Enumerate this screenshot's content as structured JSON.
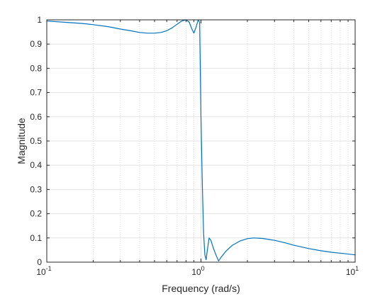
{
  "chart_data": {
    "type": "line",
    "title": "",
    "xlabel": "Frequency (rad/s)",
    "ylabel": "Magnitude",
    "xscale": "log",
    "xlim": [
      0.1,
      10
    ],
    "ylim": [
      0,
      1
    ],
    "grid": true,
    "minor_grid_x": true,
    "line_color": "#0072BD",
    "x_ticks": [
      {
        "base": "10",
        "exp": "-1",
        "value": 0.1
      },
      {
        "base": "10",
        "exp": "0",
        "value": 1
      },
      {
        "base": "10",
        "exp": "1",
        "value": 10
      }
    ],
    "y_ticks": [
      {
        "label": "0",
        "value": 0
      },
      {
        "label": "0.1",
        "value": 0.1
      },
      {
        "label": "0.2",
        "value": 0.2
      },
      {
        "label": "0.3",
        "value": 0.3
      },
      {
        "label": "0.4",
        "value": 0.4
      },
      {
        "label": "0.5",
        "value": 0.5
      },
      {
        "label": "0.6",
        "value": 0.6
      },
      {
        "label": "0.7",
        "value": 0.7
      },
      {
        "label": "0.8",
        "value": 0.8
      },
      {
        "label": "0.9",
        "value": 0.9
      },
      {
        "label": "1",
        "value": 1
      }
    ],
    "series": [
      {
        "x": [
          0.1,
          0.13,
          0.17,
          0.2,
          0.25,
          0.3,
          0.35,
          0.4,
          0.45,
          0.5,
          0.55,
          0.6,
          0.65,
          0.7,
          0.75,
          0.8,
          0.84,
          0.87,
          0.9,
          0.93,
          0.96,
          0.98,
          1.0,
          1.02,
          1.04,
          1.06,
          1.08,
          1.1,
          1.13,
          1.16,
          1.2,
          1.25,
          1.3,
          1.35,
          1.45,
          1.6,
          1.8,
          2.0,
          2.2,
          2.5,
          3.0,
          3.5,
          4.0,
          5.0,
          6.0,
          7.0,
          8.0,
          10.0
        ],
        "y": [
          0.995,
          0.99,
          0.985,
          0.98,
          0.972,
          0.962,
          0.955,
          0.948,
          0.945,
          0.945,
          0.948,
          0.955,
          0.967,
          0.982,
          0.995,
          1.0,
          0.99,
          0.965,
          0.945,
          0.97,
          1.0,
          0.99,
          0.6,
          0.32,
          0.12,
          0.03,
          0.01,
          0.05,
          0.1,
          0.09,
          0.06,
          0.03,
          0.005,
          0.02,
          0.045,
          0.07,
          0.088,
          0.097,
          0.1,
          0.098,
          0.09,
          0.08,
          0.07,
          0.056,
          0.047,
          0.041,
          0.037,
          0.03
        ]
      }
    ]
  }
}
